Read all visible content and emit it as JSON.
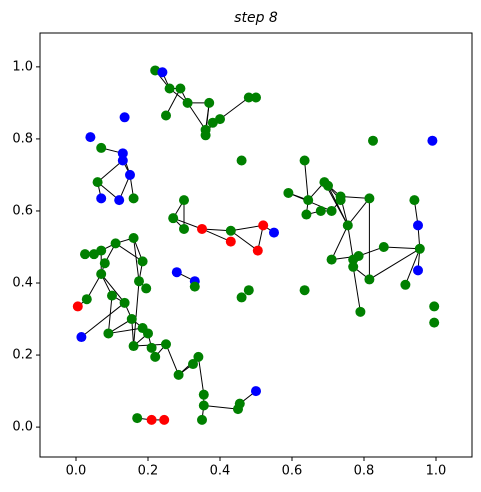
{
  "chart_data": {
    "type": "network",
    "title": "step 8",
    "xlim": [
      -0.1,
      1.1
    ],
    "ylim": [
      -0.083,
      1.094
    ],
    "xticks": [
      {
        "value": 0,
        "label": "0.0"
      },
      {
        "value": 0.2,
        "label": "0.2"
      },
      {
        "value": 0.4,
        "label": "0.4"
      },
      {
        "value": 0.6,
        "label": "0.6"
      },
      {
        "value": 0.8,
        "label": "0.8"
      },
      {
        "value": 1,
        "label": "1.0"
      }
    ],
    "yticks": [
      {
        "value": 0,
        "label": "0.0"
      },
      {
        "value": 0.2,
        "label": "0.2"
      },
      {
        "value": 0.4,
        "label": "0.4"
      },
      {
        "value": 0.6,
        "label": "0.6"
      },
      {
        "value": 0.8,
        "label": "0.8"
      },
      {
        "value": 1,
        "label": "1.0"
      }
    ],
    "nodes": [
      {
        "x": 0.22,
        "y": 0.99,
        "color": "#008000"
      },
      {
        "x": 0.24,
        "y": 0.985,
        "color": "#0000ff"
      },
      {
        "x": 0.26,
        "y": 0.94,
        "color": "#008000"
      },
      {
        "x": 0.29,
        "y": 0.94,
        "color": "#008000"
      },
      {
        "x": 0.31,
        "y": 0.9,
        "color": "#008000"
      },
      {
        "x": 0.25,
        "y": 0.865,
        "color": "#008000"
      },
      {
        "x": 0.37,
        "y": 0.9,
        "color": "#008000"
      },
      {
        "x": 0.36,
        "y": 0.825,
        "color": "#008000"
      },
      {
        "x": 0.36,
        "y": 0.81,
        "color": "#008000"
      },
      {
        "x": 0.38,
        "y": 0.845,
        "color": "#008000"
      },
      {
        "x": 0.4,
        "y": 0.855,
        "color": "#008000"
      },
      {
        "x": 0.48,
        "y": 0.915,
        "color": "#008000"
      },
      {
        "x": 0.5,
        "y": 0.915,
        "color": "#008000"
      },
      {
        "x": 0.135,
        "y": 0.86,
        "color": "#0000ff"
      },
      {
        "x": 0.04,
        "y": 0.805,
        "color": "#0000ff"
      },
      {
        "x": 0.07,
        "y": 0.775,
        "color": "#008000"
      },
      {
        "x": 0.13,
        "y": 0.76,
        "color": "#0000ff"
      },
      {
        "x": 0.13,
        "y": 0.74,
        "color": "#0000ff"
      },
      {
        "x": 0.15,
        "y": 0.7,
        "color": "#0000ff"
      },
      {
        "x": 0.06,
        "y": 0.68,
        "color": "#008000"
      },
      {
        "x": 0.07,
        "y": 0.635,
        "color": "#0000ff"
      },
      {
        "x": 0.12,
        "y": 0.63,
        "color": "#0000ff"
      },
      {
        "x": 0.16,
        "y": 0.635,
        "color": "#008000"
      },
      {
        "x": 0.3,
        "y": 0.63,
        "color": "#008000"
      },
      {
        "x": 0.27,
        "y": 0.58,
        "color": "#008000"
      },
      {
        "x": 0.3,
        "y": 0.55,
        "color": "#008000"
      },
      {
        "x": 0.35,
        "y": 0.55,
        "color": "#ff0000"
      },
      {
        "x": 0.43,
        "y": 0.545,
        "color": "#008000"
      },
      {
        "x": 0.43,
        "y": 0.515,
        "color": "#ff0000"
      },
      {
        "x": 0.52,
        "y": 0.56,
        "color": "#ff0000"
      },
      {
        "x": 0.55,
        "y": 0.54,
        "color": "#0000ff"
      },
      {
        "x": 0.505,
        "y": 0.49,
        "color": "#ff0000"
      },
      {
        "x": 0.46,
        "y": 0.74,
        "color": "#008000"
      },
      {
        "x": 0.28,
        "y": 0.43,
        "color": "#0000ff"
      },
      {
        "x": 0.33,
        "y": 0.405,
        "color": "#0000ff"
      },
      {
        "x": 0.33,
        "y": 0.39,
        "color": "#008000"
      },
      {
        "x": 0.48,
        "y": 0.38,
        "color": "#008000"
      },
      {
        "x": 0.46,
        "y": 0.36,
        "color": "#008000"
      },
      {
        "x": 0.635,
        "y": 0.74,
        "color": "#008000"
      },
      {
        "x": 0.59,
        "y": 0.65,
        "color": "#008000"
      },
      {
        "x": 0.645,
        "y": 0.63,
        "color": "#008000"
      },
      {
        "x": 0.69,
        "y": 0.68,
        "color": "#008000"
      },
      {
        "x": 0.7,
        "y": 0.67,
        "color": "#008000"
      },
      {
        "x": 0.735,
        "y": 0.64,
        "color": "#008000"
      },
      {
        "x": 0.735,
        "y": 0.63,
        "color": "#008000"
      },
      {
        "x": 0.815,
        "y": 0.635,
        "color": "#008000"
      },
      {
        "x": 0.71,
        "y": 0.6,
        "color": "#008000"
      },
      {
        "x": 0.68,
        "y": 0.6,
        "color": "#008000"
      },
      {
        "x": 0.64,
        "y": 0.59,
        "color": "#008000"
      },
      {
        "x": 0.755,
        "y": 0.56,
        "color": "#008000"
      },
      {
        "x": 0.825,
        "y": 0.795,
        "color": "#008000"
      },
      {
        "x": 0.71,
        "y": 0.465,
        "color": "#008000"
      },
      {
        "x": 0.77,
        "y": 0.465,
        "color": "#008000"
      },
      {
        "x": 0.785,
        "y": 0.475,
        "color": "#008000"
      },
      {
        "x": 0.855,
        "y": 0.5,
        "color": "#008000"
      },
      {
        "x": 0.77,
        "y": 0.445,
        "color": "#008000"
      },
      {
        "x": 0.79,
        "y": 0.32,
        "color": "#008000"
      },
      {
        "x": 0.815,
        "y": 0.41,
        "color": "#008000"
      },
      {
        "x": 0.94,
        "y": 0.63,
        "color": "#008000"
      },
      {
        "x": 0.95,
        "y": 0.56,
        "color": "#0000ff"
      },
      {
        "x": 0.955,
        "y": 0.495,
        "color": "#008000"
      },
      {
        "x": 0.95,
        "y": 0.435,
        "color": "#0000ff"
      },
      {
        "x": 0.915,
        "y": 0.395,
        "color": "#008000"
      },
      {
        "x": 0.99,
        "y": 0.795,
        "color": "#0000ff"
      },
      {
        "x": 0.995,
        "y": 0.335,
        "color": "#008000"
      },
      {
        "x": 0.995,
        "y": 0.29,
        "color": "#008000"
      },
      {
        "x": 0.635,
        "y": 0.38,
        "color": "#008000"
      },
      {
        "x": 0.005,
        "y": 0.335,
        "color": "#ff0000"
      },
      {
        "x": 0.03,
        "y": 0.355,
        "color": "#008000"
      },
      {
        "x": 0.025,
        "y": 0.48,
        "color": "#008000"
      },
      {
        "x": 0.05,
        "y": 0.48,
        "color": "#008000"
      },
      {
        "x": 0.07,
        "y": 0.49,
        "color": "#008000"
      },
      {
        "x": 0.08,
        "y": 0.455,
        "color": "#008000"
      },
      {
        "x": 0.07,
        "y": 0.425,
        "color": "#008000"
      },
      {
        "x": 0.11,
        "y": 0.51,
        "color": "#008000"
      },
      {
        "x": 0.16,
        "y": 0.525,
        "color": "#008000"
      },
      {
        "x": 0.185,
        "y": 0.46,
        "color": "#008000"
      },
      {
        "x": 0.175,
        "y": 0.405,
        "color": "#008000"
      },
      {
        "x": 0.195,
        "y": 0.385,
        "color": "#008000"
      },
      {
        "x": 0.1,
        "y": 0.365,
        "color": "#008000"
      },
      {
        "x": 0.135,
        "y": 0.345,
        "color": "#008000"
      },
      {
        "x": 0.015,
        "y": 0.25,
        "color": "#0000ff"
      },
      {
        "x": 0.09,
        "y": 0.26,
        "color": "#008000"
      },
      {
        "x": 0.155,
        "y": 0.3,
        "color": "#008000"
      },
      {
        "x": 0.16,
        "y": 0.225,
        "color": "#008000"
      },
      {
        "x": 0.185,
        "y": 0.275,
        "color": "#008000"
      },
      {
        "x": 0.2,
        "y": 0.26,
        "color": "#008000"
      },
      {
        "x": 0.21,
        "y": 0.22,
        "color": "#008000"
      },
      {
        "x": 0.22,
        "y": 0.195,
        "color": "#008000"
      },
      {
        "x": 0.25,
        "y": 0.23,
        "color": "#008000"
      },
      {
        "x": 0.285,
        "y": 0.145,
        "color": "#008000"
      },
      {
        "x": 0.325,
        "y": 0.175,
        "color": "#008000"
      },
      {
        "x": 0.34,
        "y": 0.195,
        "color": "#008000"
      },
      {
        "x": 0.355,
        "y": 0.09,
        "color": "#008000"
      },
      {
        "x": 0.355,
        "y": 0.06,
        "color": "#008000"
      },
      {
        "x": 0.35,
        "y": 0.02,
        "color": "#008000"
      },
      {
        "x": 0.45,
        "y": 0.05,
        "color": "#008000"
      },
      {
        "x": 0.455,
        "y": 0.065,
        "color": "#008000"
      },
      {
        "x": 0.5,
        "y": 0.1,
        "color": "#0000ff"
      },
      {
        "x": 0.17,
        "y": 0.025,
        "color": "#008000"
      },
      {
        "x": 0.21,
        "y": 0.02,
        "color": "#ff0000"
      },
      {
        "x": 0.245,
        "y": 0.02,
        "color": "#ff0000"
      }
    ],
    "edges": [
      [
        0,
        1
      ],
      [
        0,
        2
      ],
      [
        1,
        2
      ],
      [
        2,
        3
      ],
      [
        3,
        4
      ],
      [
        2,
        4
      ],
      [
        5,
        3
      ],
      [
        4,
        6
      ],
      [
        4,
        7
      ],
      [
        6,
        7
      ],
      [
        7,
        9
      ],
      [
        9,
        10
      ],
      [
        10,
        11
      ],
      [
        6,
        8
      ],
      [
        8,
        9
      ],
      [
        15,
        16
      ],
      [
        16,
        18
      ],
      [
        17,
        18
      ],
      [
        19,
        17
      ],
      [
        19,
        20
      ],
      [
        19,
        21
      ],
      [
        18,
        21
      ],
      [
        18,
        22
      ],
      [
        23,
        24
      ],
      [
        24,
        25
      ],
      [
        23,
        25
      ],
      [
        24,
        26
      ],
      [
        26,
        27
      ],
      [
        27,
        29
      ],
      [
        27,
        31
      ],
      [
        29,
        31
      ],
      [
        29,
        30
      ],
      [
        33,
        34
      ],
      [
        26,
        28
      ],
      [
        38,
        40
      ],
      [
        39,
        40
      ],
      [
        39,
        46
      ],
      [
        40,
        41
      ],
      [
        41,
        42
      ],
      [
        41,
        43
      ],
      [
        42,
        44
      ],
      [
        43,
        45
      ],
      [
        44,
        46
      ],
      [
        46,
        47
      ],
      [
        47,
        48
      ],
      [
        40,
        48
      ],
      [
        42,
        49
      ],
      [
        43,
        49
      ],
      [
        45,
        49
      ],
      [
        49,
        51
      ],
      [
        49,
        52
      ],
      [
        51,
        53
      ],
      [
        52,
        53
      ],
      [
        53,
        54
      ],
      [
        52,
        55
      ],
      [
        55,
        56
      ],
      [
        55,
        57
      ],
      [
        54,
        60
      ],
      [
        57,
        60
      ],
      [
        58,
        59
      ],
      [
        59,
        60
      ],
      [
        60,
        61
      ],
      [
        60,
        62
      ],
      [
        41,
        49
      ],
      [
        45,
        57
      ],
      [
        67,
        68
      ],
      [
        68,
        73
      ],
      [
        69,
        70
      ],
      [
        70,
        71
      ],
      [
        71,
        74
      ],
      [
        72,
        73
      ],
      [
        73,
        79
      ],
      [
        72,
        74
      ],
      [
        74,
        75
      ],
      [
        75,
        76
      ],
      [
        74,
        76
      ],
      [
        76,
        77
      ],
      [
        77,
        78
      ],
      [
        73,
        80
      ],
      [
        79,
        80
      ],
      [
        80,
        81
      ],
      [
        79,
        82
      ],
      [
        80,
        83
      ],
      [
        82,
        83
      ],
      [
        83,
        84
      ],
      [
        83,
        85
      ],
      [
        85,
        86
      ],
      [
        84,
        86
      ],
      [
        86,
        87
      ],
      [
        87,
        88
      ],
      [
        84,
        89
      ],
      [
        88,
        89
      ],
      [
        89,
        90
      ],
      [
        90,
        91
      ],
      [
        91,
        92
      ],
      [
        90,
        92
      ],
      [
        92,
        93
      ],
      [
        93,
        94
      ],
      [
        94,
        95
      ],
      [
        94,
        96
      ],
      [
        96,
        97
      ],
      [
        97,
        98
      ],
      [
        99,
        100
      ],
      [
        100,
        101
      ],
      [
        77,
        84
      ],
      [
        75,
        77
      ],
      [
        82,
        85
      ],
      [
        71,
        73
      ]
    ]
  }
}
